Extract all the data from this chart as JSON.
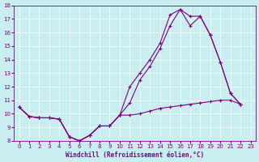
{
  "title": "",
  "xlabel": "Windchill (Refroidissement éolien,°C)",
  "ylabel": "",
  "background_color": "#c8eef0",
  "line_color": "#800080",
  "xlim": [
    -0.5,
    23.5
  ],
  "ylim": [
    8,
    18
  ],
  "yticks": [
    8,
    9,
    10,
    11,
    12,
    13,
    14,
    15,
    16,
    17,
    18
  ],
  "xticks": [
    0,
    1,
    2,
    3,
    4,
    5,
    6,
    7,
    8,
    9,
    10,
    11,
    12,
    13,
    14,
    15,
    16,
    17,
    18,
    19,
    20,
    21,
    22,
    23
  ],
  "curve1_x": [
    0,
    1,
    2,
    3,
    4,
    5,
    6,
    7,
    8,
    9,
    10,
    11,
    12,
    13,
    14,
    15,
    16,
    17,
    18,
    19,
    20,
    21,
    22
  ],
  "curve1_y": [
    10.5,
    9.8,
    9.7,
    9.7,
    9.6,
    8.3,
    8.0,
    8.4,
    9.1,
    9.1,
    9.9,
    12.0,
    13.0,
    14.0,
    15.2,
    17.3,
    17.7,
    17.2,
    17.2,
    15.8,
    13.8,
    11.5,
    10.7
  ],
  "curve2_x": [
    0,
    1,
    2,
    3,
    4,
    5,
    6,
    7,
    8,
    9,
    10,
    11,
    12,
    13,
    14,
    15,
    16,
    17,
    18,
    19,
    20,
    21,
    22
  ],
  "curve2_y": [
    10.5,
    9.8,
    9.7,
    9.7,
    9.6,
    8.3,
    8.0,
    8.4,
    9.1,
    9.1,
    9.9,
    10.8,
    12.5,
    13.5,
    14.8,
    16.5,
    17.7,
    16.5,
    17.2,
    15.8,
    13.8,
    11.5,
    10.7
  ],
  "curve3_x": [
    0,
    1,
    2,
    3,
    4,
    5,
    6,
    7,
    8,
    9,
    10,
    11,
    12,
    13,
    14,
    15,
    16,
    17,
    18,
    19,
    20,
    21,
    22
  ],
  "curve3_y": [
    10.5,
    9.8,
    9.7,
    9.7,
    9.6,
    8.3,
    8.0,
    8.4,
    9.1,
    9.1,
    9.9,
    9.9,
    10.0,
    10.2,
    10.4,
    10.5,
    10.6,
    10.7,
    10.8,
    10.9,
    11.0,
    11.0,
    10.7
  ]
}
